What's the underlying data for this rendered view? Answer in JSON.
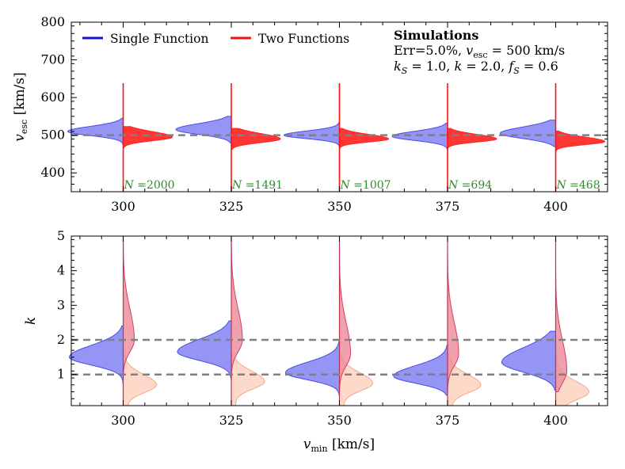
{
  "chart_data": [
    {
      "type": "violin",
      "panel": "top",
      "x_ticks": [
        300,
        325,
        350,
        375,
        400
      ],
      "xlim": [
        288,
        412
      ],
      "ylabel": "v_esc [km/s]",
      "ylabel_main": "v",
      "ylabel_sub": "esc",
      "ylabel_units": " [km/s]",
      "ylim": [
        350,
        800
      ],
      "y_ticks": [
        400,
        500,
        600,
        700,
        800
      ],
      "reference_lines": [
        500
      ],
      "legend": [
        {
          "label": "Single Function",
          "color": "#1010e0"
        },
        {
          "label": "Two Functions",
          "color": "#ff1010"
        }
      ],
      "annotation": {
        "title": "Simulations",
        "line1_pre": "Err=5.0%, ",
        "line1_v": "v",
        "line1_sub": "esc",
        "line1_post": " = 500 km/s",
        "line2": "kS = 1.0, k = 2.0, fS = 0.6",
        "line2_k": "k",
        "line2_S": "S",
        "line2_a": " = 1.0, ",
        "line2_b": " = 2.0, ",
        "line2_f": "f",
        "line2_c": " = 0.6"
      },
      "groups": [
        {
          "x": 300,
          "n_prefix": "N",
          "n_value": "=2000",
          "single_mode": 510,
          "single_sd": 12,
          "two_mode": 495,
          "two_sd": 12
        },
        {
          "x": 325,
          "n_prefix": "N",
          "n_value": "=1491",
          "single_mode": 515,
          "single_sd": 14,
          "two_mode": 490,
          "two_sd": 12
        },
        {
          "x": 350,
          "n_prefix": "N",
          "n_value": "=1007",
          "single_mode": 500,
          "single_sd": 10,
          "two_mode": 490,
          "two_sd": 10
        },
        {
          "x": 375,
          "n_prefix": "N",
          "n_value": "=694",
          "single_mode": 497,
          "single_sd": 12,
          "two_mode": 490,
          "two_sd": 10
        },
        {
          "x": 400,
          "n_prefix": "N",
          "n_value": "=468",
          "single_mode": 505,
          "single_sd": 15,
          "two_mode": 483,
          "two_sd": 10
        }
      ]
    },
    {
      "type": "violin",
      "panel": "bottom",
      "x_ticks": [
        300,
        325,
        350,
        375,
        400
      ],
      "xlim": [
        288,
        412
      ],
      "xlabel": "v_min [km/s]",
      "xlabel_main": "v",
      "xlabel_sub": "min",
      "xlabel_units": " [km/s]",
      "ylabel": "k",
      "ylim": [
        0.1,
        5
      ],
      "y_ticks": [
        1,
        2,
        3,
        4,
        5
      ],
      "reference_lines": [
        1.0,
        2.0
      ],
      "groups": [
        {
          "x": 300,
          "single_mode": 1.5,
          "single_sd": 0.28,
          "two_k_mode": 2.0,
          "two_kS_mode": 0.7
        },
        {
          "x": 325,
          "single_mode": 1.65,
          "single_sd": 0.3,
          "two_k_mode": 2.0,
          "two_kS_mode": 0.8
        },
        {
          "x": 350,
          "single_mode": 1.05,
          "single_sd": 0.25,
          "two_k_mode": 1.6,
          "two_kS_mode": 0.75
        },
        {
          "x": 375,
          "single_mode": 0.95,
          "single_sd": 0.25,
          "two_k_mode": 1.6,
          "two_kS_mode": 0.7
        },
        {
          "x": 400,
          "single_mode": 1.35,
          "single_sd": 0.35,
          "two_k_mode": 1.1,
          "two_kS_mode": 0.5
        }
      ]
    }
  ],
  "colors": {
    "single_fill": "#7b7bf2",
    "single_edge": "#4a4ae8",
    "two_fill": "#ff2020",
    "two_k_fill": "#ee8a9a",
    "two_k_edge": "#d04060",
    "two_ks_fill": "#fdd2c0",
    "two_ks_edge": "#f0a890",
    "ref_line": "#808080",
    "n_label": "#2e8b2e"
  }
}
